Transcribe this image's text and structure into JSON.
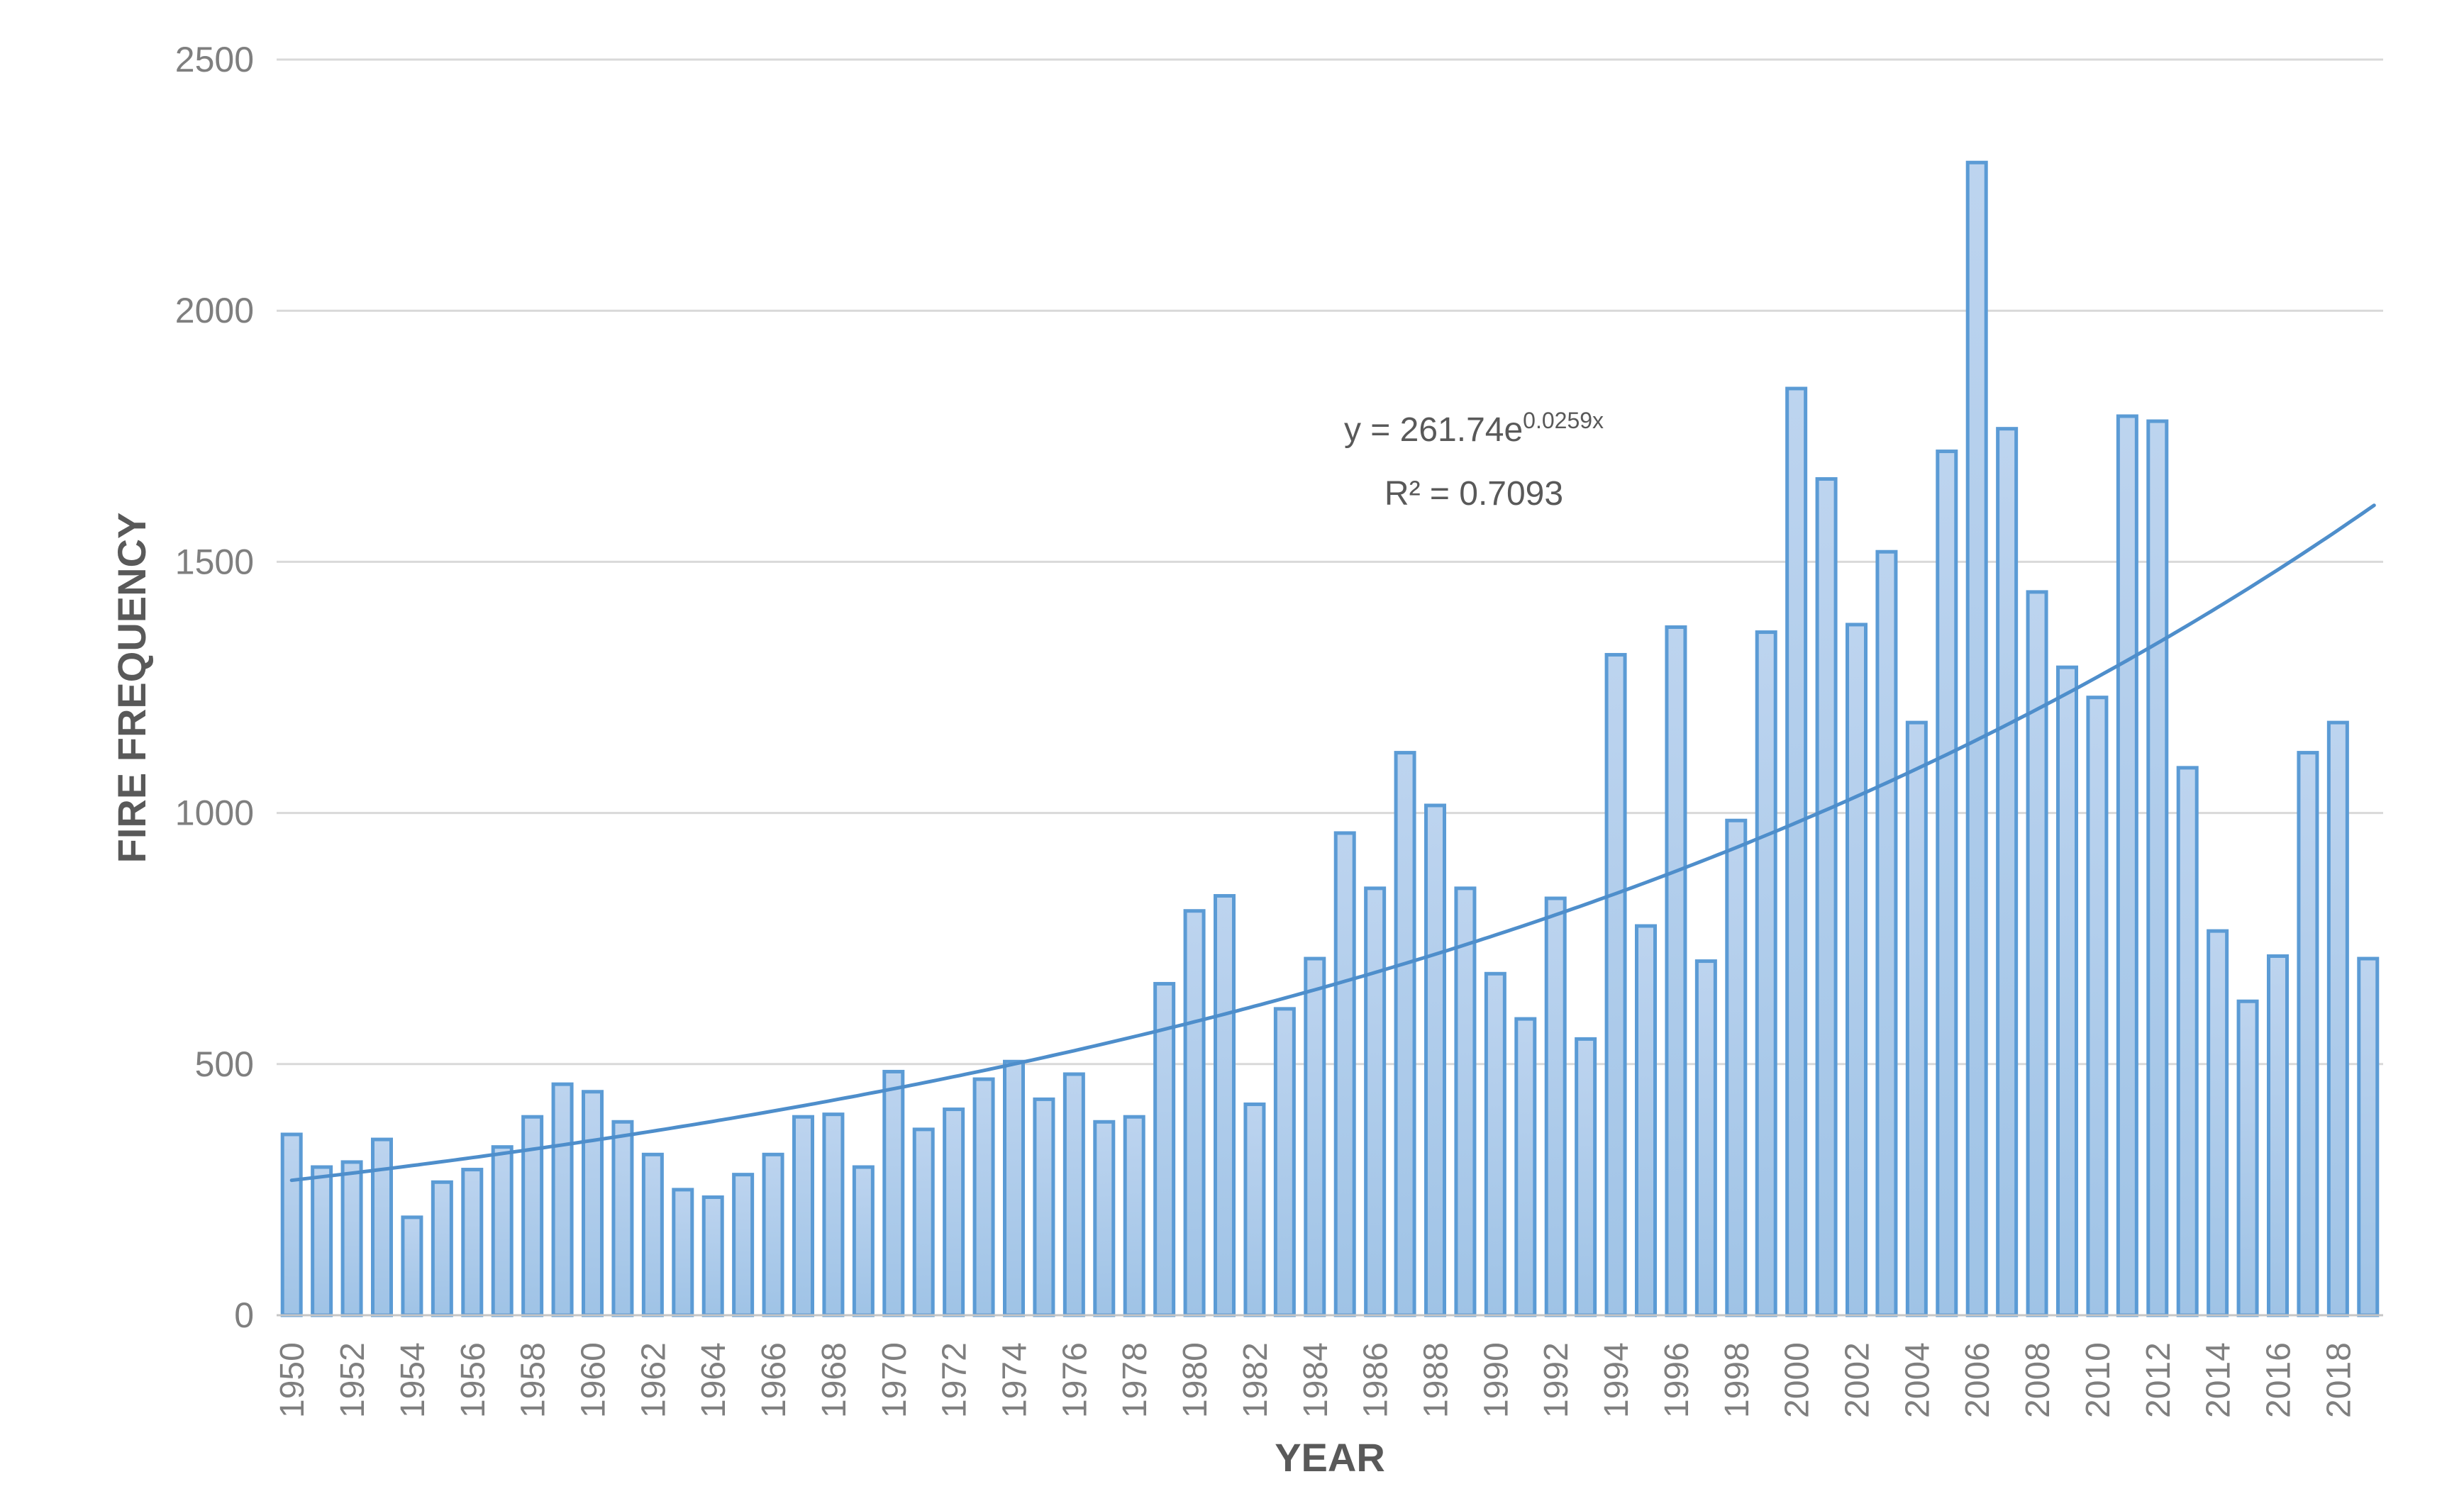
{
  "chart_data": {
    "type": "bar",
    "xlabel": "YEAR",
    "ylabel": "FIRE FREQUENCY",
    "ylim": [
      0,
      2500
    ],
    "y_ticks": [
      0,
      500,
      1000,
      1500,
      2000,
      2500
    ],
    "grid": "horizontal",
    "legend": "none",
    "categories": [
      1950,
      1951,
      1952,
      1953,
      1954,
      1955,
      1956,
      1957,
      1958,
      1959,
      1960,
      1961,
      1962,
      1963,
      1964,
      1965,
      1966,
      1967,
      1968,
      1969,
      1970,
      1971,
      1972,
      1973,
      1974,
      1975,
      1976,
      1977,
      1978,
      1979,
      1980,
      1981,
      1982,
      1983,
      1984,
      1985,
      1986,
      1987,
      1988,
      1989,
      1990,
      1991,
      1992,
      1993,
      1994,
      1995,
      1996,
      1997,
      1998,
      1999,
      2000,
      2001,
      2002,
      2003,
      2004,
      2005,
      2006,
      2007,
      2008,
      2009,
      2010,
      2011,
      2012,
      2013,
      2014,
      2015,
      2016,
      2017,
      2018,
      2019
    ],
    "values": [
      360,
      295,
      305,
      350,
      195,
      265,
      290,
      335,
      395,
      460,
      445,
      385,
      320,
      250,
      235,
      280,
      320,
      395,
      400,
      295,
      485,
      370,
      410,
      470,
      505,
      430,
      480,
      385,
      395,
      660,
      805,
      835,
      420,
      610,
      710,
      960,
      850,
      1120,
      1015,
      850,
      680,
      590,
      830,
      550,
      1315,
      775,
      1370,
      705,
      985,
      1360,
      1845,
      1665,
      1375,
      1520,
      1180,
      1720,
      2295,
      1765,
      1440,
      1290,
      1230,
      1790,
      1780,
      1090,
      765,
      625,
      715,
      1120,
      1180,
      710
    ],
    "x_tick_labels": [
      "1950",
      "1952",
      "1954",
      "1956",
      "1958",
      "1960",
      "1962",
      "1964",
      "1966",
      "1968",
      "1970",
      "1972",
      "1974",
      "1976",
      "1978",
      "1980",
      "1982",
      "1984",
      "1986",
      "1988",
      "1990",
      "1992",
      "1994",
      "1996",
      "1998",
      "2000",
      "2002",
      "2004",
      "2006",
      "2008",
      "2010",
      "2012",
      "2014",
      "2016",
      "2018"
    ],
    "trendline": {
      "type": "exponential",
      "equation_base": "y = 261.74e",
      "equation_exponent": "0.0259x",
      "r_squared_label": "R² = 0.7093",
      "a": 261.74,
      "b": 0.0259
    },
    "colors": {
      "bar_fill_top": "#BDD4EF",
      "bar_fill_bottom": "#9FC3E6",
      "bar_border": "#5B9BD5",
      "trendline": "#4E8ECB",
      "gridline": "#D9D9D9",
      "axis_line": "#C6C6C6",
      "tick_text": "#7F7F7F",
      "title_text": "#595959",
      "annotation_text": "#595959",
      "background": "#FFFFFF"
    }
  }
}
